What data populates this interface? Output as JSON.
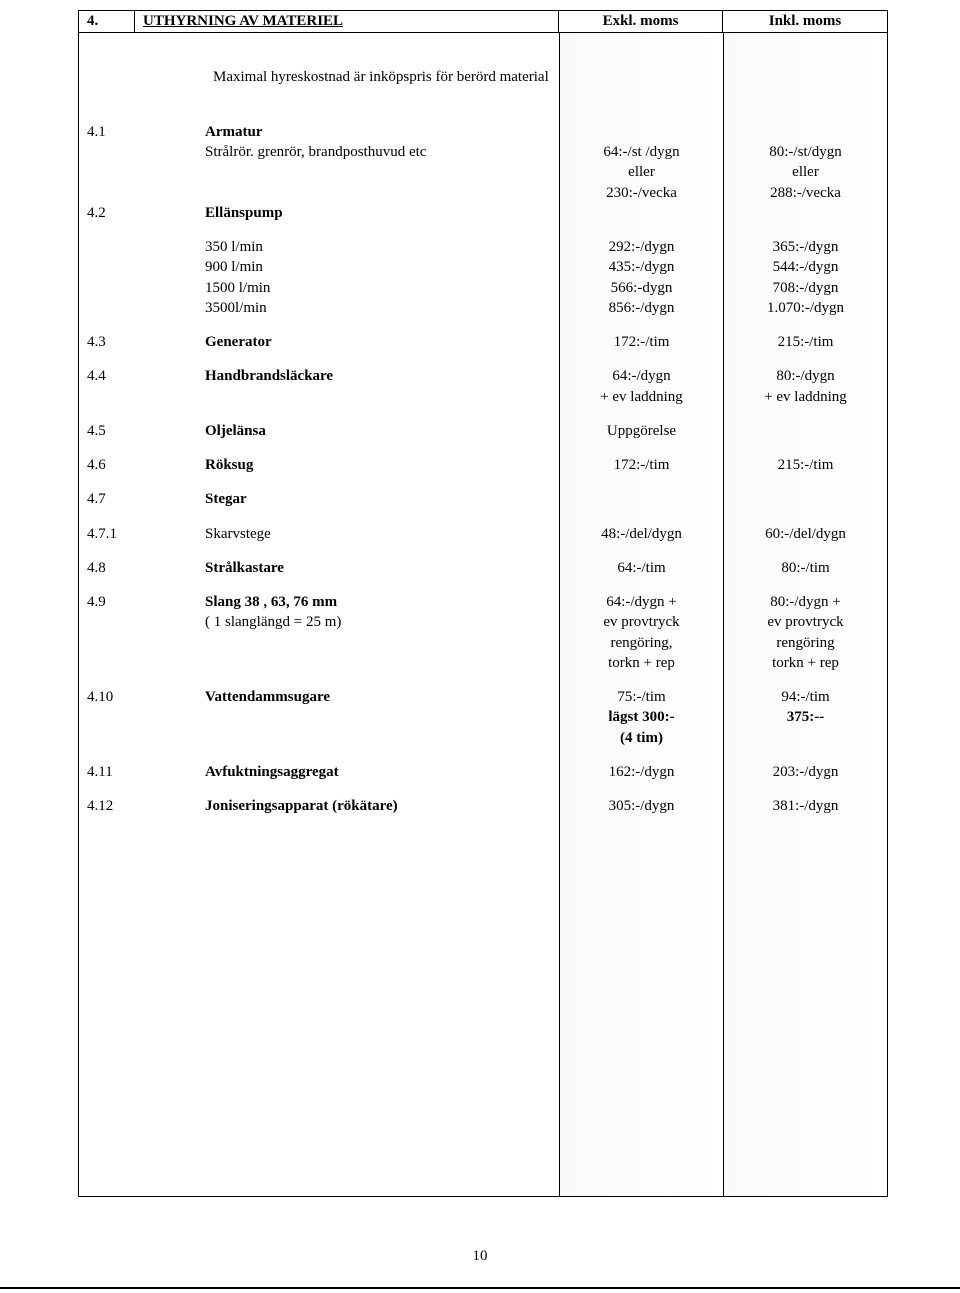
{
  "header": {
    "section_num": "4.",
    "title": "UTHYRNING AV MATERIEL",
    "exkl": "Exkl. moms",
    "inkl": "Inkl. moms"
  },
  "intro": "Maximal hyreskostnad är inköpspris för berörd material",
  "rows": [
    {
      "num": "4.1",
      "label": "Armatur",
      "label_bold": true,
      "desc": "",
      "exkl": "",
      "inkl": ""
    },
    {
      "num": "",
      "label": "",
      "desc": "Strålrör. grenrör, brandposthuvud etc",
      "exkl": "64:-/st /dygn\neller\n230:-/vecka",
      "inkl": "80:-/st/dygn\neller\n288:-/vecka"
    },
    {
      "num": "4.2",
      "label": "Ellänspump",
      "label_bold": true,
      "desc": "",
      "exkl": "",
      "inkl": ""
    },
    {
      "spacer": true
    },
    {
      "num": "",
      "label": "",
      "desc": "350 l/min",
      "indent": true,
      "exkl": "292:-/dygn",
      "inkl": "365:-/dygn"
    },
    {
      "num": "",
      "label": "",
      "desc": "900 l/min",
      "indent": true,
      "exkl": "435:-/dygn",
      "inkl": "544:-/dygn"
    },
    {
      "num": "",
      "label": "",
      "desc": "1500 l/min",
      "indent": true,
      "exkl": "566:-dygn",
      "inkl": "708:-/dygn"
    },
    {
      "num": "",
      "label": "",
      "desc": "3500l/min",
      "indent": true,
      "exkl": "856:-/dygn",
      "inkl": "1.070:-/dygn"
    },
    {
      "spacer": true
    },
    {
      "num": "4.3",
      "label": "Generator",
      "label_bold": true,
      "exkl": "172:-/tim",
      "inkl": "215:-/tim"
    },
    {
      "spacer": true
    },
    {
      "num": "4.4",
      "label": "Handbrandsläckare",
      "label_bold": true,
      "exkl": "64:-/dygn\n+ ev laddning",
      "inkl": "80:-/dygn\n+ ev laddning"
    },
    {
      "spacer": true
    },
    {
      "num": "4.5",
      "label": "Oljelänsa",
      "label_bold": true,
      "exkl": "Uppgörelse",
      "inkl": ""
    },
    {
      "spacer": true
    },
    {
      "num": "4.6",
      "label": "Röksug",
      "label_bold": true,
      "exkl": "172:-/tim",
      "inkl": "215:-/tim"
    },
    {
      "spacer": true
    },
    {
      "num": "4.7",
      "label": "Stegar",
      "label_bold": true,
      "exkl": "",
      "inkl": ""
    },
    {
      "spacer": true
    },
    {
      "num": "4.7.1",
      "label": "Skarvstege",
      "exkl": "48:-/del/dygn",
      "inkl": "60:-/del/dygn"
    },
    {
      "spacer": true
    },
    {
      "num": "4.8",
      "label": "Strålkastare",
      "label_bold": true,
      "exkl": "64:-/tim",
      "inkl": "80:-/tim"
    },
    {
      "spacer": true
    },
    {
      "num": "4.9",
      "label": "Slang 38 , 63, 76 mm",
      "label_bold": true,
      "sub": "( 1 slanglängd = 25 m)",
      "exkl": "64:-/dygn +\nev provtryck\nrengöring,\ntorkn + rep",
      "inkl": "80:-/dygn +\nev provtryck\nrengöring\ntorkn + rep"
    },
    {
      "spacer": true
    },
    {
      "num": "4.10",
      "label": "Vattendammsugare",
      "label_bold": true,
      "exkl": "75:-/tim\nlägst 300:-\n(4 tim)",
      "inkl": "94:-/tim\n375:--",
      "exkl_bold_lines": [
        1,
        2
      ]
    },
    {
      "spacer": true
    },
    {
      "num": "4.11",
      "label": "Avfuktningsaggregat",
      "label_bold": true,
      "exkl": "162:-/dygn",
      "inkl": "203:-/dygn"
    },
    {
      "spacer": true
    },
    {
      "num": "4.12",
      "label": "Joniseringsapparat (rökätare)",
      "label_bold": true,
      "exkl": "305:-/dygn",
      "inkl": "381:-/dygn"
    }
  ],
  "page_number": "10",
  "blank_rows_height": 380
}
